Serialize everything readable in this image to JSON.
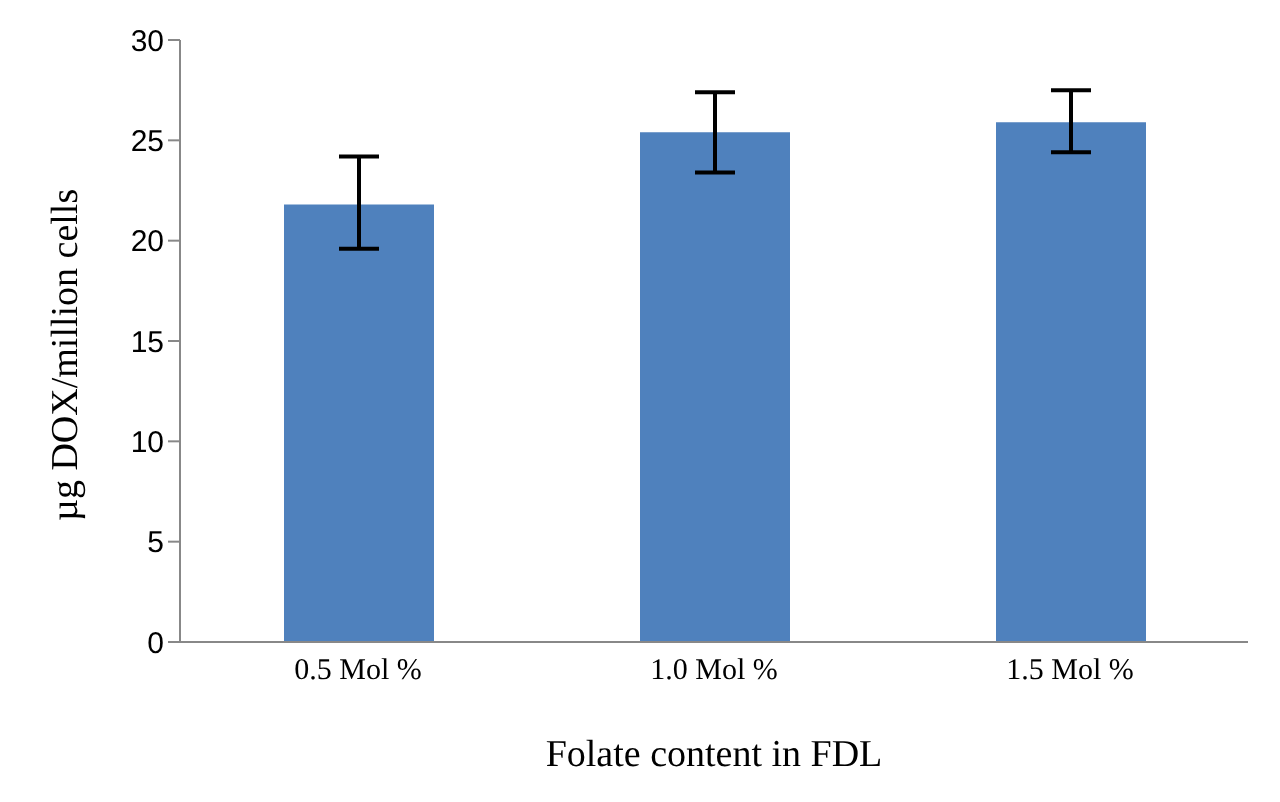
{
  "chart_data": {
    "type": "bar",
    "xlabel": "Folate content in FDL",
    "ylabel": "µg DOX/million cells",
    "categories": [
      "0.5 Mol %",
      "1.0 Mol %",
      "1.5 Mol %"
    ],
    "values": [
      21.8,
      25.4,
      25.9
    ],
    "errors": [
      [
        19.6,
        24.2
      ],
      [
        23.4,
        27.4
      ],
      [
        24.4,
        27.5
      ]
    ],
    "color": "#4f81bd",
    "ylim": [
      0,
      30
    ],
    "yticks": [
      0,
      5,
      10,
      15,
      20,
      25,
      30
    ],
    "grid": false,
    "legend": false
  }
}
